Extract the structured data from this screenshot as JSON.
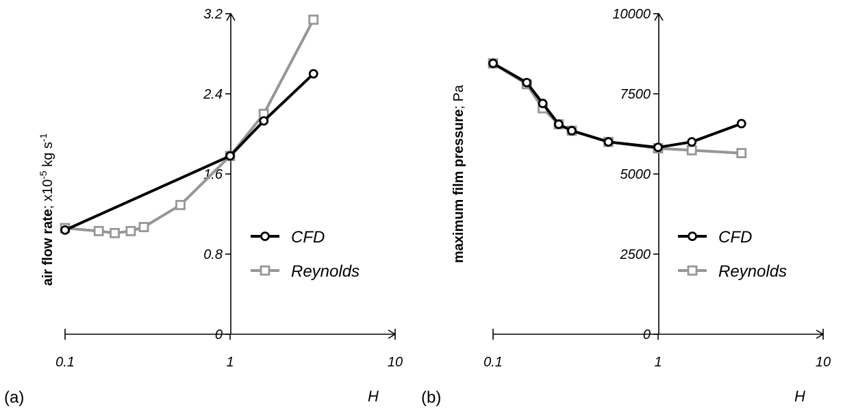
{
  "chart_data": [
    {
      "type": "line",
      "panel_label": "(a)",
      "xlabel": "H",
      "x_scale": "log",
      "xlim": [
        0.1,
        10
      ],
      "xticks": [
        "0.1",
        "1",
        "10"
      ],
      "ylabel_bold": "air flow rate",
      "ylabel_rest": "; x10",
      "ylabel_exp": "-5",
      "ylabel_unit": " kg s",
      "ylabel_unit_exp": "-1",
      "ylim": [
        0,
        3.2
      ],
      "yticks": [
        "0",
        "0.8",
        "1.6",
        "2.4",
        "3.2"
      ],
      "yticks_values": [
        0,
        0.8,
        1.6,
        2.4,
        3.2
      ],
      "legend_position": "center-right",
      "series": [
        {
          "name": "CFD",
          "color": "#000000",
          "marker": "circle",
          "x": [
            0.1,
            1,
            1.6,
            3.2
          ],
          "y": [
            1.04,
            1.78,
            2.13,
            2.6
          ]
        },
        {
          "name": "Reynolds",
          "color": "#969696",
          "marker": "square",
          "x": [
            0.1,
            0.16,
            0.2,
            0.25,
            0.3,
            0.5,
            1,
            1.6,
            3.2
          ],
          "y": [
            1.06,
            1.03,
            1.01,
            1.03,
            1.07,
            1.29,
            1.78,
            2.2,
            3.14
          ]
        }
      ]
    },
    {
      "type": "line",
      "panel_label": "(b)",
      "xlabel": "H",
      "x_scale": "log",
      "xlim": [
        0.1,
        10
      ],
      "xticks": [
        "0.1",
        "1",
        "10"
      ],
      "ylabel_bold": "maximum film pressure",
      "ylabel_rest": "; Pa",
      "ylim": [
        0,
        10000
      ],
      "yticks": [
        "0",
        "2500",
        "5000",
        "7500",
        "10000"
      ],
      "yticks_values": [
        0,
        2500,
        5000,
        7500,
        10000
      ],
      "legend_position": "center-right",
      "series": [
        {
          "name": "CFD",
          "color": "#000000",
          "marker": "circle",
          "x": [
            0.1,
            0.16,
            0.2,
            0.25,
            0.3,
            0.5,
            1,
            1.6,
            3.2
          ],
          "y": [
            8450,
            7850,
            7200,
            6550,
            6350,
            6000,
            5830,
            6000,
            6570
          ]
        },
        {
          "name": "Reynolds",
          "color": "#969696",
          "marker": "square",
          "x": [
            0.1,
            0.16,
            0.2,
            0.25,
            0.3,
            0.5,
            1,
            1.6,
            3.2
          ],
          "y": [
            8450,
            7800,
            7050,
            6550,
            6350,
            6000,
            5800,
            5740,
            5650
          ]
        }
      ]
    }
  ]
}
